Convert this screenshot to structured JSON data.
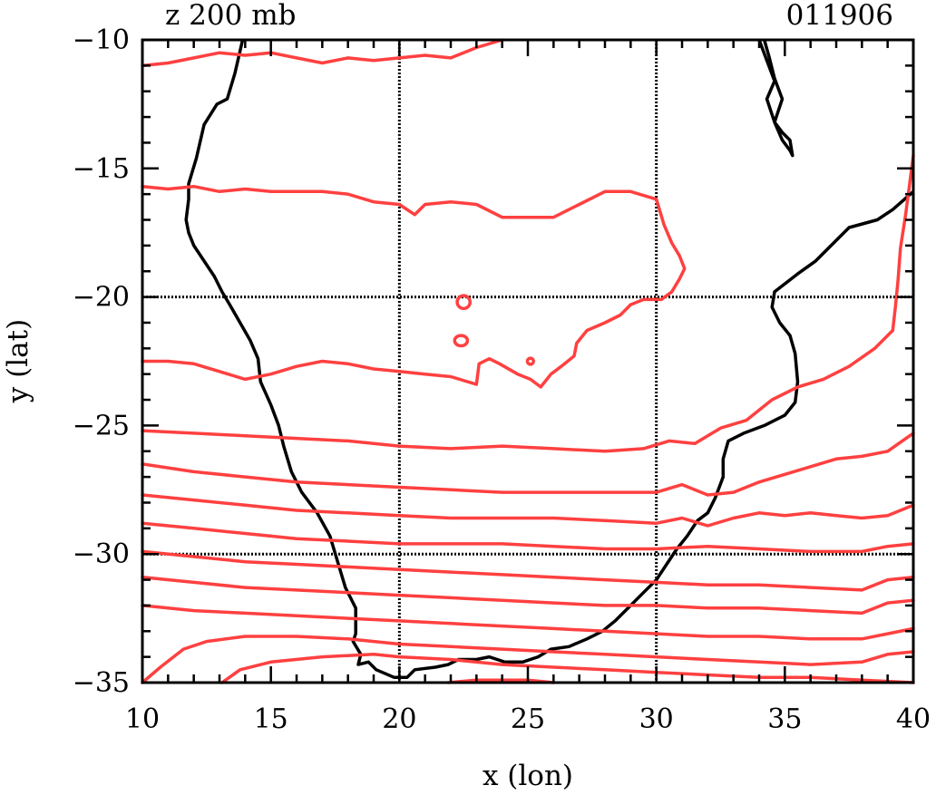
{
  "header": {
    "field_label": "z 200 mb",
    "date_label": "011906"
  },
  "axes": {
    "x_title": "x (lon)",
    "y_title": "y (lat)",
    "x_ticks": [
      "10",
      "15",
      "20",
      "25",
      "30",
      "35",
      "40"
    ],
    "y_ticks": [
      "−10",
      "−15",
      "−20",
      "−25",
      "−30",
      "−35"
    ],
    "x_range": [
      10,
      40
    ],
    "y_range": [
      -35,
      -10
    ]
  },
  "map_data": {
    "type": "contour",
    "gridlines_lon": [
      20,
      30
    ],
    "gridlines_lat": [
      -20,
      -30
    ],
    "colors": {
      "contour": "#ff4040",
      "coastline": "#000000",
      "gridline": "#000000"
    },
    "coastline": {
      "africa_west_south_east": [
        [
          13.9,
          -10
        ],
        [
          13.6,
          -11.3
        ],
        [
          13.3,
          -12.3
        ],
        [
          12.9,
          -12.5
        ],
        [
          12.4,
          -13.3
        ],
        [
          12.1,
          -14.6
        ],
        [
          11.8,
          -15.6
        ],
        [
          11.8,
          -16.2
        ],
        [
          11.7,
          -17.0
        ],
        [
          11.8,
          -17.5
        ],
        [
          12.0,
          -18.0
        ],
        [
          12.4,
          -18.6
        ],
        [
          12.8,
          -19.2
        ],
        [
          13.1,
          -19.8
        ],
        [
          13.4,
          -20.3
        ],
        [
          13.8,
          -21.0
        ],
        [
          14.2,
          -21.7
        ],
        [
          14.5,
          -22.4
        ],
        [
          14.6,
          -23.3
        ],
        [
          15.0,
          -24.2
        ],
        [
          15.3,
          -25.0
        ],
        [
          15.5,
          -25.8
        ],
        [
          15.8,
          -26.8
        ],
        [
          16.2,
          -27.6
        ],
        [
          16.8,
          -28.4
        ],
        [
          17.3,
          -29.3
        ],
        [
          17.6,
          -30.3
        ],
        [
          17.9,
          -31.3
        ],
        [
          18.3,
          -32.1
        ],
        [
          18.3,
          -33.1
        ],
        [
          18.2,
          -33.4
        ],
        [
          18.5,
          -33.9
        ],
        [
          18.4,
          -34.3
        ],
        [
          18.8,
          -34.2
        ],
        [
          19.1,
          -34.5
        ],
        [
          19.8,
          -34.8
        ],
        [
          20.3,
          -34.8
        ],
        [
          20.6,
          -34.5
        ],
        [
          21.4,
          -34.4
        ],
        [
          21.9,
          -34.3
        ],
        [
          22.3,
          -34.1
        ],
        [
          23.0,
          -34.1
        ],
        [
          23.5,
          -34.0
        ],
        [
          24.1,
          -34.2
        ],
        [
          24.8,
          -34.2
        ],
        [
          25.4,
          -34.0
        ],
        [
          25.9,
          -33.7
        ],
        [
          26.6,
          -33.6
        ],
        [
          27.3,
          -33.3
        ],
        [
          27.9,
          -33.0
        ],
        [
          28.4,
          -32.6
        ],
        [
          28.9,
          -32.1
        ],
        [
          29.5,
          -31.5
        ],
        [
          30.0,
          -31.0
        ],
        [
          30.4,
          -30.4
        ],
        [
          30.8,
          -29.8
        ],
        [
          31.2,
          -29.3
        ],
        [
          31.6,
          -28.7
        ],
        [
          32.0,
          -28.4
        ],
        [
          32.3,
          -27.8
        ],
        [
          32.6,
          -27.0
        ],
        [
          32.6,
          -26.3
        ],
        [
          32.8,
          -25.6
        ],
        [
          33.4,
          -25.3
        ],
        [
          34.2,
          -25.0
        ],
        [
          35.0,
          -24.6
        ],
        [
          35.4,
          -24.1
        ],
        [
          35.5,
          -23.3
        ],
        [
          35.4,
          -22.2
        ],
        [
          35.2,
          -21.5
        ],
        [
          34.8,
          -21.0
        ],
        [
          34.5,
          -20.4
        ],
        [
          34.6,
          -19.8
        ],
        [
          35.5,
          -19.1
        ],
        [
          36.2,
          -18.6
        ],
        [
          36.8,
          -18.0
        ],
        [
          37.5,
          -17.3
        ],
        [
          38.6,
          -17.0
        ],
        [
          39.2,
          -16.6
        ],
        [
          40.0,
          -15.9
        ]
      ],
      "lake_malawi": [
        [
          34.0,
          -10
        ],
        [
          34.3,
          -10.8
        ],
        [
          34.6,
          -11.6
        ],
        [
          34.3,
          -12.3
        ],
        [
          34.6,
          -13.2
        ],
        [
          34.9,
          -13.9
        ],
        [
          35.2,
          -14.3
        ],
        [
          35.3,
          -14.5
        ],
        [
          35.2,
          -13.9
        ],
        [
          34.9,
          -13.6
        ],
        [
          34.6,
          -13.2
        ],
        [
          34.9,
          -12.3
        ],
        [
          34.6,
          -11.5
        ],
        [
          34.4,
          -10.7
        ],
        [
          34.2,
          -10
        ]
      ]
    },
    "contours": [
      [
        [
          10,
          -11.0
        ],
        [
          11.0,
          -10.9
        ],
        [
          12.0,
          -10.7
        ],
        [
          13.0,
          -10.5
        ],
        [
          14.0,
          -10.6
        ],
        [
          15.0,
          -10.5
        ],
        [
          16.0,
          -10.7
        ],
        [
          17.0,
          -10.9
        ],
        [
          18.0,
          -10.7
        ],
        [
          19.0,
          -10.8
        ],
        [
          20.0,
          -10.7
        ],
        [
          21.0,
          -10.6
        ],
        [
          22.0,
          -10.7
        ],
        [
          23.0,
          -10.3
        ],
        [
          24.0,
          -10
        ]
      ],
      [
        [
          10,
          -15.7
        ],
        [
          11.0,
          -15.8
        ],
        [
          12.0,
          -15.7
        ],
        [
          13.0,
          -15.9
        ],
        [
          14.0,
          -15.8
        ],
        [
          15.0,
          -15.9
        ],
        [
          16.0,
          -15.9
        ],
        [
          17.0,
          -15.9
        ],
        [
          18.0,
          -16.0
        ],
        [
          19.0,
          -16.3
        ],
        [
          20.0,
          -16.4
        ],
        [
          20.6,
          -16.8
        ],
        [
          21.0,
          -16.4
        ],
        [
          22.0,
          -16.3
        ],
        [
          23.0,
          -16.4
        ],
        [
          24.0,
          -16.9
        ],
        [
          25.0,
          -16.9
        ],
        [
          26.0,
          -16.9
        ],
        [
          27.0,
          -16.4
        ],
        [
          28.0,
          -15.9
        ],
        [
          29.0,
          -15.9
        ],
        [
          30.0,
          -16.2
        ],
        [
          30.3,
          -17.2
        ],
        [
          30.6,
          -17.9
        ],
        [
          30.9,
          -18.4
        ],
        [
          31.1,
          -18.9
        ],
        [
          30.9,
          -19.3
        ],
        [
          30.6,
          -19.8
        ],
        [
          30.2,
          -20.1
        ],
        [
          29.5,
          -20.1
        ],
        [
          29.0,
          -20.3
        ],
        [
          28.6,
          -20.7
        ],
        [
          28.0,
          -21.0
        ],
        [
          27.3,
          -21.3
        ],
        [
          26.9,
          -21.8
        ],
        [
          26.8,
          -22.3
        ],
        [
          26.3,
          -22.7
        ],
        [
          25.9,
          -23.0
        ],
        [
          25.5,
          -23.5
        ],
        [
          25.1,
          -23.2
        ],
        [
          24.6,
          -23.0
        ],
        [
          23.9,
          -22.6
        ],
        [
          23.5,
          -22.4
        ],
        [
          23.1,
          -22.6
        ],
        [
          23.0,
          -23.4
        ],
        [
          22.0,
          -23.1
        ],
        [
          21.0,
          -23.0
        ],
        [
          20.0,
          -22.9
        ],
        [
          19.0,
          -22.8
        ],
        [
          18.0,
          -22.6
        ],
        [
          17.0,
          -22.5
        ],
        [
          16.0,
          -22.7
        ],
        [
          15.0,
          -23.0
        ],
        [
          14.0,
          -23.2
        ],
        [
          13.0,
          -22.9
        ],
        [
          12.0,
          -22.6
        ],
        [
          11.0,
          -22.5
        ],
        [
          10,
          -22.5
        ]
      ],
      [
        [
          10,
          -25.2
        ],
        [
          12.0,
          -25.3
        ],
        [
          14.0,
          -25.4
        ],
        [
          16.0,
          -25.5
        ],
        [
          18.0,
          -25.6
        ],
        [
          20.0,
          -25.8
        ],
        [
          22.0,
          -25.9
        ],
        [
          24.0,
          -25.8
        ],
        [
          26.0,
          -25.9
        ],
        [
          28.0,
          -26.0
        ],
        [
          29.5,
          -25.9
        ],
        [
          30.5,
          -25.6
        ],
        [
          31.5,
          -25.7
        ],
        [
          32.5,
          -25.1
        ],
        [
          33.5,
          -24.8
        ],
        [
          34.5,
          -24.0
        ],
        [
          35.5,
          -23.5
        ],
        [
          36.5,
          -23.2
        ],
        [
          37.5,
          -22.7
        ],
        [
          38.5,
          -22.0
        ],
        [
          39.2,
          -21.3
        ],
        [
          39.3,
          -20.4
        ],
        [
          39.4,
          -19.4
        ],
        [
          39.5,
          -18.1
        ],
        [
          39.7,
          -16.8
        ],
        [
          40,
          -14.5
        ]
      ],
      [
        [
          10,
          -26.5
        ],
        [
          12.0,
          -26.8
        ],
        [
          14.0,
          -27.0
        ],
        [
          16.0,
          -27.2
        ],
        [
          18.0,
          -27.3
        ],
        [
          20.0,
          -27.4
        ],
        [
          22.0,
          -27.5
        ],
        [
          24.0,
          -27.6
        ],
        [
          26.0,
          -27.6
        ],
        [
          28.0,
          -27.6
        ],
        [
          30.0,
          -27.6
        ],
        [
          31.0,
          -27.3
        ],
        [
          32.0,
          -27.7
        ],
        [
          33.0,
          -27.6
        ],
        [
          34.0,
          -27.2
        ],
        [
          35.0,
          -26.9
        ],
        [
          36.0,
          -26.6
        ],
        [
          37.0,
          -26.3
        ],
        [
          38.0,
          -26.2
        ],
        [
          39.0,
          -26.0
        ],
        [
          40,
          -25.3
        ]
      ],
      [
        [
          10,
          -27.7
        ],
        [
          12.0,
          -27.9
        ],
        [
          14.0,
          -28.1
        ],
        [
          16.0,
          -28.3
        ],
        [
          18.0,
          -28.4
        ],
        [
          20.0,
          -28.5
        ],
        [
          22.0,
          -28.6
        ],
        [
          24.0,
          -28.6
        ],
        [
          26.0,
          -28.6
        ],
        [
          28.0,
          -28.7
        ],
        [
          30.0,
          -28.8
        ],
        [
          31.0,
          -28.6
        ],
        [
          32.0,
          -28.9
        ],
        [
          33.0,
          -28.6
        ],
        [
          34.0,
          -28.4
        ],
        [
          35.0,
          -28.5
        ],
        [
          36.0,
          -28.4
        ],
        [
          37.0,
          -28.5
        ],
        [
          38.0,
          -28.6
        ],
        [
          39.0,
          -28.5
        ],
        [
          40,
          -28.1
        ]
      ],
      [
        [
          10,
          -28.8
        ],
        [
          12.0,
          -29.0
        ],
        [
          14.0,
          -29.2
        ],
        [
          16.0,
          -29.4
        ],
        [
          18.0,
          -29.5
        ],
        [
          20.0,
          -29.6
        ],
        [
          22.0,
          -29.6
        ],
        [
          24.0,
          -29.6
        ],
        [
          26.0,
          -29.7
        ],
        [
          28.0,
          -29.8
        ],
        [
          30.0,
          -29.8
        ],
        [
          32.0,
          -29.7
        ],
        [
          34.0,
          -29.8
        ],
        [
          36.0,
          -29.9
        ],
        [
          38.0,
          -29.9
        ],
        [
          39.0,
          -29.7
        ],
        [
          40,
          -29.6
        ]
      ],
      [
        [
          10,
          -29.9
        ],
        [
          12.0,
          -30.1
        ],
        [
          14.0,
          -30.3
        ],
        [
          16.0,
          -30.4
        ],
        [
          18.0,
          -30.5
        ],
        [
          20.0,
          -30.6
        ],
        [
          22.0,
          -30.7
        ],
        [
          24.0,
          -30.8
        ],
        [
          26.0,
          -30.9
        ],
        [
          28.0,
          -31.0
        ],
        [
          30.0,
          -31.1
        ],
        [
          32.0,
          -31.2
        ],
        [
          34.0,
          -31.2
        ],
        [
          36.0,
          -31.3
        ],
        [
          38.0,
          -31.4
        ],
        [
          39.0,
          -31.0
        ],
        [
          40,
          -30.9
        ]
      ],
      [
        [
          10,
          -30.9
        ],
        [
          12.0,
          -31.1
        ],
        [
          14.0,
          -31.3
        ],
        [
          16.0,
          -31.4
        ],
        [
          18.0,
          -31.5
        ],
        [
          20.0,
          -31.6
        ],
        [
          22.0,
          -31.7
        ],
        [
          24.0,
          -31.8
        ],
        [
          26.0,
          -31.9
        ],
        [
          28.0,
          -32.0
        ],
        [
          30.0,
          -32.0
        ],
        [
          32.0,
          -32.1
        ],
        [
          34.0,
          -32.1
        ],
        [
          36.0,
          -32.2
        ],
        [
          38.0,
          -32.3
        ],
        [
          39.0,
          -31.9
        ],
        [
          40,
          -31.8
        ]
      ],
      [
        [
          10,
          -32.0
        ],
        [
          12.0,
          -32.2
        ],
        [
          14.0,
          -32.3
        ],
        [
          16.0,
          -32.4
        ],
        [
          18.0,
          -32.5
        ],
        [
          20.0,
          -32.6
        ],
        [
          22.0,
          -32.7
        ],
        [
          24.0,
          -32.8
        ],
        [
          26.0,
          -32.9
        ],
        [
          28.0,
          -33.0
        ],
        [
          30.0,
          -33.1
        ],
        [
          32.0,
          -33.2
        ],
        [
          34.0,
          -33.2
        ],
        [
          36.0,
          -33.3
        ],
        [
          38.0,
          -33.3
        ],
        [
          39.0,
          -33.1
        ],
        [
          40,
          -32.9
        ]
      ],
      [
        [
          10,
          -35.0
        ],
        [
          10.7,
          -34.4
        ],
        [
          11.6,
          -33.7
        ],
        [
          12.5,
          -33.4
        ],
        [
          14.0,
          -33.2
        ],
        [
          16.0,
          -33.2
        ],
        [
          18.0,
          -33.3
        ],
        [
          20.0,
          -33.5
        ],
        [
          22.0,
          -33.6
        ],
        [
          24.0,
          -33.7
        ],
        [
          26.0,
          -33.8
        ],
        [
          28.0,
          -33.9
        ],
        [
          30.0,
          -34.0
        ],
        [
          32.0,
          -34.1
        ],
        [
          34.0,
          -34.2
        ],
        [
          36.0,
          -34.3
        ],
        [
          38.0,
          -34.2
        ],
        [
          39.0,
          -33.9
        ],
        [
          40,
          -33.8
        ]
      ],
      [
        [
          13.1,
          -35.0
        ],
        [
          13.8,
          -34.5
        ],
        [
          15.0,
          -34.2
        ],
        [
          17.0,
          -34.0
        ],
        [
          19.0,
          -33.9
        ],
        [
          20.0,
          -34.0
        ],
        [
          22.0,
          -34.1
        ],
        [
          24.0,
          -34.3
        ],
        [
          26.0,
          -34.4
        ],
        [
          28.0,
          -34.5
        ],
        [
          30.0,
          -34.6
        ],
        [
          32.0,
          -34.7
        ],
        [
          34.0,
          -34.8
        ],
        [
          36.0,
          -34.8
        ],
        [
          38.0,
          -34.9
        ],
        [
          40,
          -35.0
        ]
      ],
      [
        [
          21.9,
          -35.0
        ],
        [
          23.0,
          -34.9
        ],
        [
          24.0,
          -34.9
        ],
        [
          25.0,
          -34.9
        ],
        [
          26.0,
          -35.0
        ]
      ]
    ],
    "closed_contours": [
      {
        "center": [
          22.5,
          -20.2
        ],
        "r": [
          0.25,
          0.25
        ]
      },
      {
        "center": [
          22.4,
          -21.7
        ],
        "r": [
          0.25,
          0.2
        ]
      },
      {
        "center": [
          25.1,
          -22.5
        ],
        "r": [
          0.12,
          0.12
        ]
      }
    ]
  }
}
